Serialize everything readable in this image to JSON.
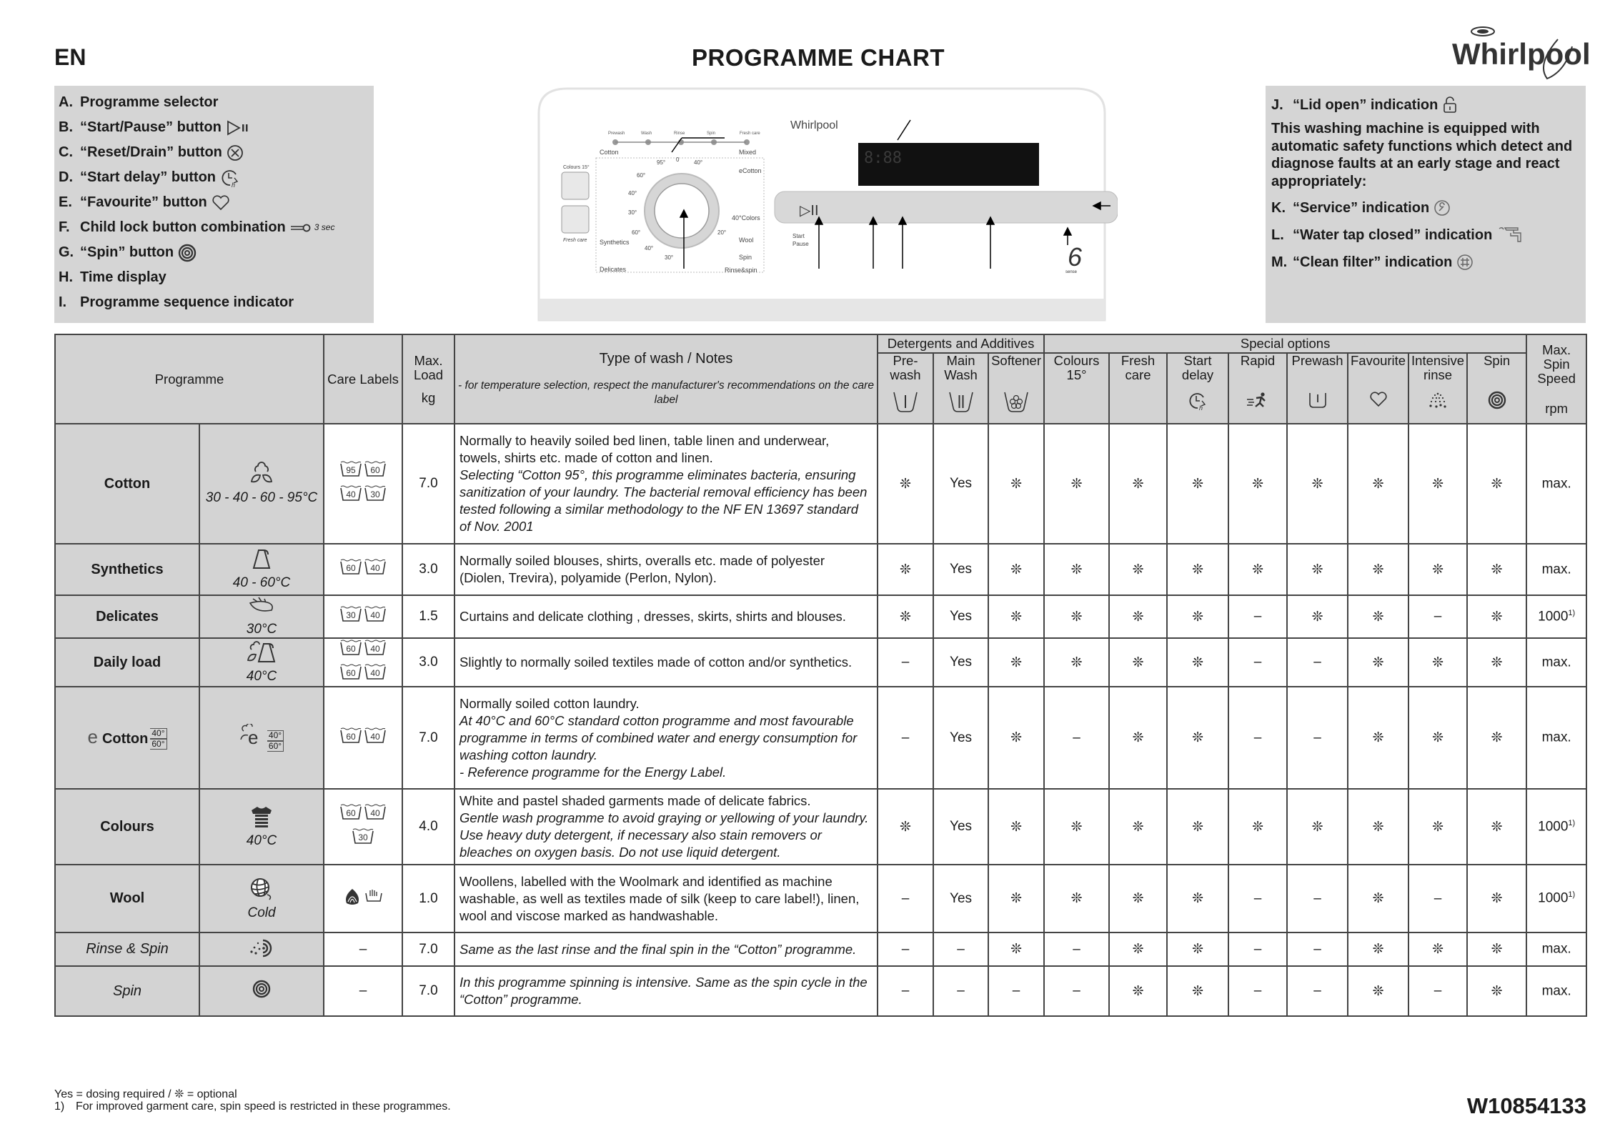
{
  "header": {
    "lang": "EN",
    "title": "PROGRAMME CHART",
    "brand": "Whirlpool"
  },
  "left_panel": {
    "items": [
      {
        "letter": "A.",
        "label": "Programme selector",
        "icon": ""
      },
      {
        "letter": "B.",
        "label": "“Start/Pause” button",
        "icon": "play-pause-icon"
      },
      {
        "letter": "C.",
        "label": "“Reset/Drain” button",
        "icon": "reset-x-icon"
      },
      {
        "letter": "D.",
        "label": "“Start delay” button",
        "icon": "clock-delay-icon"
      },
      {
        "letter": "E.",
        "label": "“Favourite” button",
        "icon": "heart-icon"
      },
      {
        "letter": "F.",
        "label": "Child lock button combination",
        "icon": "key-icon",
        "icon_text": "3 sec"
      },
      {
        "letter": "G.",
        "label": "“Spin” button",
        "icon": "spin-icon"
      },
      {
        "letter": "H.",
        "label": "Time display",
        "icon": ""
      },
      {
        "letter": "I.",
        "label": "Programme sequence indicator",
        "icon": ""
      }
    ]
  },
  "right_panel": {
    "j": {
      "letter": "J.",
      "label": "“Lid open” indication",
      "icon": "lock-open-icon"
    },
    "paragraph": "This washing machine is equipped with automatic safety functions which detect and diagnose faults at an early stage and react appropriately:",
    "items": [
      {
        "letter": "K.",
        "label": "“Service” indication",
        "icon": "wrench-icon"
      },
      {
        "letter": "L.",
        "label": "“Water tap closed” indication",
        "icon": "tap-icon"
      },
      {
        "letter": "M.",
        "label": "“Clean filter” indication",
        "icon": "filter-icon"
      }
    ]
  },
  "machine": {
    "brand": "Whirlpool",
    "sequence": [
      "Prewash",
      "Wash",
      "Rinse",
      "Spin",
      "Fresh care"
    ],
    "left_buttons": [
      "Colours 15°",
      "Fresh care"
    ],
    "dial_left": [
      "Cotton",
      "Synthetics",
      "Delicates"
    ],
    "dial_right": [
      "Mixed",
      "eCotton",
      "40°Colors",
      "Wool",
      "Spin",
      "Rinse&spin"
    ],
    "temps": [
      "95°",
      "0",
      "40°",
      "60°",
      "40°",
      "30°",
      "60°",
      "40°",
      "30°",
      "20°"
    ],
    "start_pause": [
      "Start",
      "Pause"
    ],
    "display": "8:88",
    "sense": "6",
    "sense_label": "sense"
  },
  "table": {
    "headers": {
      "programme": "Programme",
      "care_labels": "Care Labels",
      "max_load": "Max. Load",
      "max_load_unit": "kg",
      "type_of_wash": "Type of wash / Notes",
      "type_of_wash_note": "- for temperature selection, respect the manufacturer's recommendations on the care label",
      "detergents_group": "Detergents and Additives",
      "special_group": "Special options",
      "max_spin": "Max. Spin Speed",
      "max_spin_unit": "rpm",
      "columns": [
        {
          "label": "Pre- wash",
          "icon": "prewash-basin-icon"
        },
        {
          "label": "Main Wash",
          "icon": "mainwash-basin-icon"
        },
        {
          "label": "Softener",
          "icon": "softener-basin-icon"
        },
        {
          "label": "Colours 15°",
          "icon": ""
        },
        {
          "label": "Fresh care",
          "icon": ""
        },
        {
          "label": "Start delay",
          "icon": "clock-delay-icon"
        },
        {
          "label": "Rapid",
          "icon": "runner-icon"
        },
        {
          "label": "Prewash",
          "icon": "prewash-option-icon"
        },
        {
          "label": "Favourite",
          "icon": "heart-icon"
        },
        {
          "label": "Intensive rinse",
          "icon": "intensive-rinse-icon"
        },
        {
          "label": "Spin",
          "icon": "spin-icon"
        }
      ]
    },
    "rows": [
      {
        "name": "Cotton",
        "style": "bold",
        "symbol": "cotton-icon",
        "temp": "30 - 40 - 60 - 95°C",
        "care": [
          "95",
          "60",
          "40",
          "30"
        ],
        "load": "7.0",
        "notes": [
          {
            "t": "Normally to heavily soiled bed linen, table linen and underwear, towels, shirts etc. made of cotton and linen.",
            "i": false
          },
          {
            "t": "Selecting “Cotton 95°, this programme eliminates bacteria, ensuring sanitization of your laundry. The bacterial removal efficiency has been tested following a similar methodology to the NF EN 13697 standard of Nov. 2001",
            "i": true
          }
        ],
        "values": [
          "❊",
          "Yes",
          "❊",
          "❊",
          "❊",
          "❊",
          "❊",
          "❊",
          "❊",
          "❊",
          "❊"
        ],
        "spin": "max.",
        "spin_note": ""
      },
      {
        "name": "Synthetics",
        "style": "bold",
        "symbol": "synthetics-icon",
        "temp": "40 - 60°C",
        "care": [
          "60",
          "40"
        ],
        "load": "3.0",
        "notes": [
          {
            "t": "Normally soiled blouses, shirts, overalls etc. made of polyester (Diolen, Trevira), polyamide (Perlon, Nylon).",
            "i": false
          }
        ],
        "values": [
          "❊",
          "Yes",
          "❊",
          "❊",
          "❊",
          "❊",
          "❊",
          "❊",
          "❊",
          "❊",
          "❊"
        ],
        "spin": "max.",
        "spin_note": ""
      },
      {
        "name": "Delicates",
        "style": "bold",
        "symbol": "delicates-icon",
        "temp": "30°C",
        "care": [
          "30",
          "40"
        ],
        "load": "1.5",
        "notes": [
          {
            "t": "Curtains and delicate clothing , dresses, skirts, shirts and blouses.",
            "i": false
          }
        ],
        "values": [
          "❊",
          "Yes",
          "❊",
          "❊",
          "❊",
          "❊",
          "–",
          "❊",
          "❊",
          "–",
          "❊"
        ],
        "spin": "1000",
        "spin_note": "1)"
      },
      {
        "name": "Daily load",
        "style": "bold",
        "symbol": "daily-load-icon",
        "temp": "40°C",
        "care": [
          "60",
          "40",
          "60",
          "40"
        ],
        "load": "3.0",
        "notes": [
          {
            "t": "Slightly to normally soiled textiles made of cotton and/or synthetics.",
            "i": false
          }
        ],
        "values": [
          "–",
          "Yes",
          "❊",
          "❊",
          "❊",
          "❊",
          "–",
          "–",
          "❊",
          "❊",
          "❊"
        ],
        "spin": "max.",
        "spin_note": ""
      },
      {
        "name": "Cotton",
        "prefix": "e",
        "tags": [
          "40°",
          "60°"
        ],
        "style": "bold",
        "symbol": "ecotton-icon",
        "temp": "",
        "care": [
          "60",
          "40"
        ],
        "load": "7.0",
        "notes": [
          {
            "t": "Normally soiled cotton laundry.",
            "i": false
          },
          {
            "t": "At 40°C and 60°C standard cotton programme and most favourable programme in terms of combined water and energy consumption for washing cotton laundry.",
            "i": true
          },
          {
            "t": "- Reference programme for the Energy Label.",
            "i": true
          }
        ],
        "values": [
          "–",
          "Yes",
          "❊",
          "–",
          "❊",
          "❊",
          "–",
          "–",
          "❊",
          "❊",
          "❊"
        ],
        "spin": "max.",
        "spin_note": ""
      },
      {
        "name": "Colours",
        "style": "bold",
        "symbol": "colours-icon",
        "temp": "40°C",
        "care": [
          "60",
          "40",
          "30"
        ],
        "load": "4.0",
        "notes": [
          {
            "t": "White and pastel shaded garments made of delicate fabrics.",
            "i": false
          },
          {
            "t": "Gentle wash programme to avoid graying or yellowing of your laundry. Use heavy duty detergent, if necessary also stain removers or bleaches on oxygen basis. Do not use liquid detergent.",
            "i": true
          }
        ],
        "values": [
          "❊",
          "Yes",
          "❊",
          "❊",
          "❊",
          "❊",
          "❊",
          "❊",
          "❊",
          "❊",
          "❊"
        ],
        "spin": "1000",
        "spin_note": "1)"
      },
      {
        "name": "Wool",
        "style": "bold",
        "symbol": "wool-icon",
        "temp": "Cold",
        "care": [
          "woolmark",
          "handwash"
        ],
        "load": "1.0",
        "notes": [
          {
            "t": "Woollens, labelled with the Woolmark and identified as machine washable, as well as textiles made of silk (keep to care label!), linen, wool and viscose marked as handwashable.",
            "i": false
          }
        ],
        "values": [
          "–",
          "Yes",
          "❊",
          "❊",
          "❊",
          "❊",
          "–",
          "–",
          "❊",
          "–",
          "❊"
        ],
        "spin": "1000",
        "spin_note": "1)"
      },
      {
        "name": "Rinse & Spin",
        "style": "italic",
        "symbol": "rinse-spin-icon",
        "temp": "",
        "care": "–",
        "load": "7.0",
        "notes": [
          {
            "t": "Same as the last rinse and the final spin in the “Cotton” programme.",
            "i": true
          }
        ],
        "values": [
          "–",
          "–",
          "❊",
          "–",
          "❊",
          "❊",
          "–",
          "–",
          "❊",
          "❊",
          "❊"
        ],
        "spin": "max.",
        "spin_note": ""
      },
      {
        "name": "Spin",
        "style": "italic",
        "symbol": "spin-icon",
        "temp": "",
        "care": "–",
        "load": "7.0",
        "notes": [
          {
            "t": "In this programme spinning is intensive. Same as the spin cycle in the “Cotton” programme.",
            "i": true
          }
        ],
        "values": [
          "–",
          "–",
          "–",
          "–",
          "❊",
          "❊",
          "–",
          "–",
          "❊",
          "–",
          "❊"
        ],
        "spin": "max.",
        "spin_note": ""
      }
    ]
  },
  "footer": {
    "legend": "Yes = dosing required / ❊ = optional",
    "footnote_mark": "1)",
    "footnote": "For improved garment care, spin speed is restricted in these programmes.",
    "doc_number": "W10854133"
  }
}
